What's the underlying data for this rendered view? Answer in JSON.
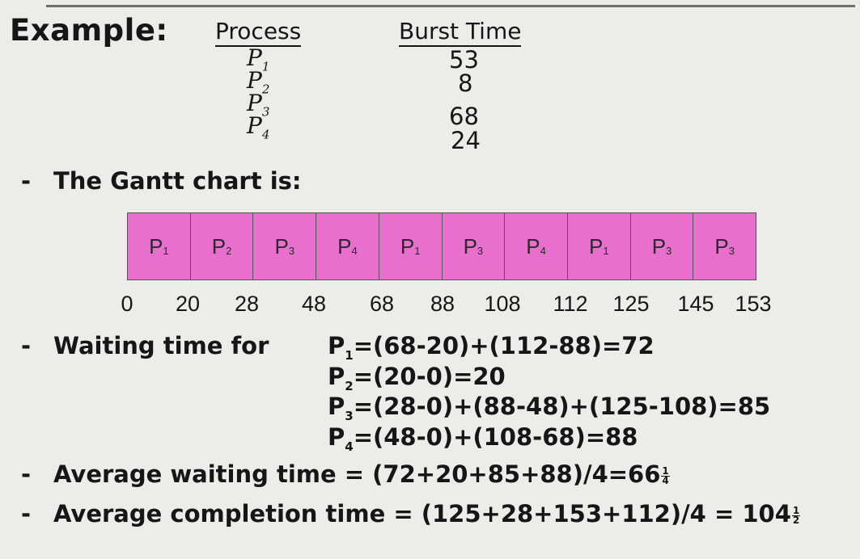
{
  "example_label": "Example:",
  "table": {
    "process_header": "Process",
    "burst_header": "Burst Time",
    "rows": [
      {
        "process": "P",
        "index": "1",
        "burst": "53"
      },
      {
        "process": "P",
        "index": "2",
        "burst": "8"
      },
      {
        "process": "P",
        "index": "3",
        "burst": "68"
      },
      {
        "process": "P",
        "index": "4",
        "burst": "24"
      }
    ]
  },
  "bullets": {
    "dash": "-",
    "gantt_intro": "The Gantt chart is:",
    "waiting_label": "Waiting time for",
    "avg_waiting_prefix": "Average waiting time = (72+20+85+88)/4=66",
    "avg_waiting_frac": {
      "num": "1",
      "den": "4"
    },
    "avg_completion_prefix": "Average completion time = (125+28+153+112)/4  = 104",
    "avg_completion_frac": {
      "num": "1",
      "den": "2"
    }
  },
  "gantt": {
    "fill_color": "#e96fcf",
    "cells": [
      {
        "label": "P",
        "index": "1"
      },
      {
        "label": "P",
        "index": "2"
      },
      {
        "label": "P",
        "index": "3"
      },
      {
        "label": "P",
        "index": "4"
      },
      {
        "label": "P",
        "index": "1"
      },
      {
        "label": "P",
        "index": "3"
      },
      {
        "label": "P",
        "index": "4"
      },
      {
        "label": "P",
        "index": "1"
      },
      {
        "label": "P",
        "index": "3"
      },
      {
        "label": "P",
        "index": "3"
      }
    ],
    "ticks": [
      "0",
      "20",
      "28",
      "48",
      "68",
      "88",
      "108",
      "112",
      "125",
      "145",
      "153"
    ]
  },
  "waiting": [
    {
      "p": "P",
      "index": "1",
      "expr": "=(68-20)+(112-88)=72"
    },
    {
      "p": "P",
      "index": "2",
      "expr": "=(20-0)=20"
    },
    {
      "p": "P",
      "index": "3",
      "expr": "=(28-0)+(88-48)+(125-108)=85"
    },
    {
      "p": "P",
      "index": "4",
      "expr": "=(48-0)+(108-68)=88"
    }
  ]
}
